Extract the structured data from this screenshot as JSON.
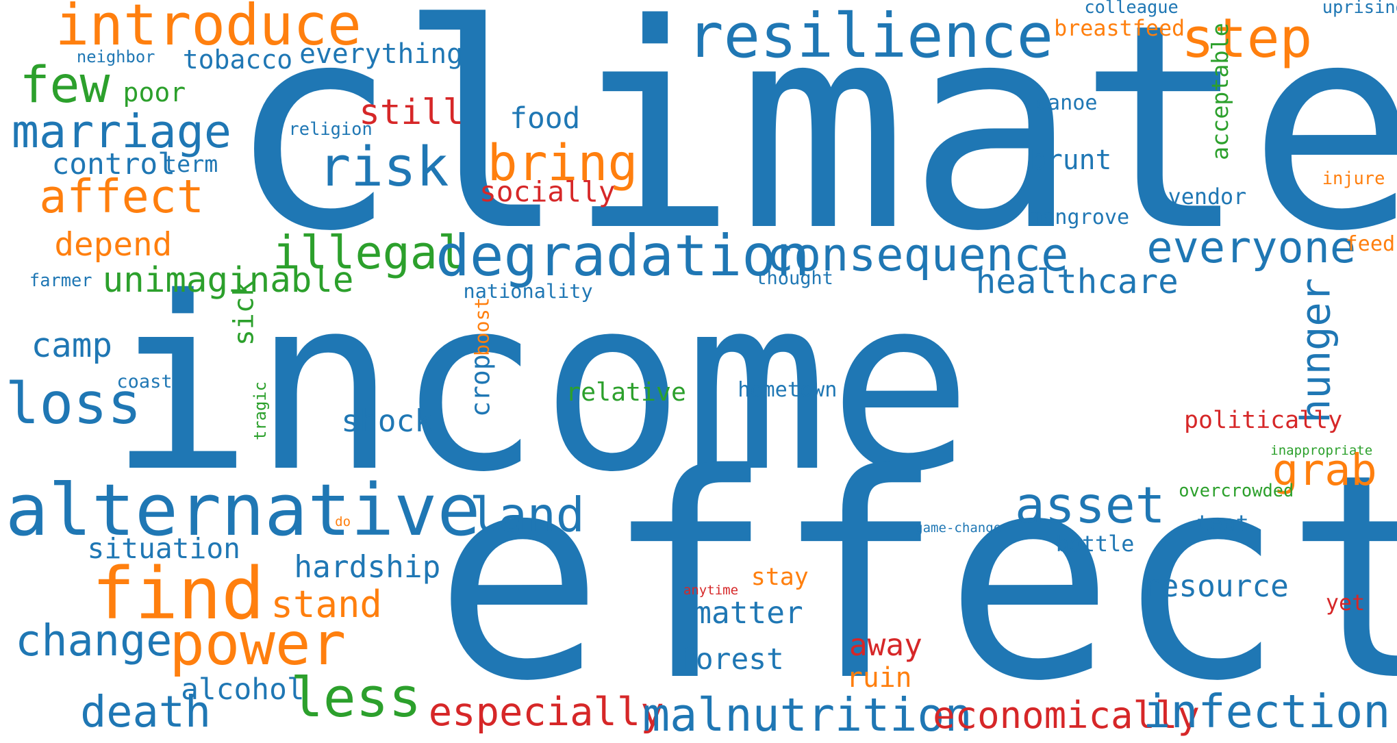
{
  "colors": {
    "blue": "#1f77b4",
    "orange": "#ff7f0e",
    "green": "#2ca02c",
    "red": "#d62728",
    "background": "#ffffff"
  },
  "words": [
    {
      "text": "climate",
      "color": "blue"
    },
    {
      "text": "income",
      "color": "blue"
    },
    {
      "text": "effect",
      "color": "blue"
    },
    {
      "text": "introduce",
      "color": "orange"
    },
    {
      "text": "resilience",
      "color": "blue"
    },
    {
      "text": "step",
      "color": "orange"
    },
    {
      "text": "colleague",
      "color": "blue"
    },
    {
      "text": "uprising",
      "color": "blue"
    },
    {
      "text": "breastfeed",
      "color": "orange"
    },
    {
      "text": "neighbor",
      "color": "blue"
    },
    {
      "text": "tobacco",
      "color": "blue"
    },
    {
      "text": "everything",
      "color": "blue"
    },
    {
      "text": "few",
      "color": "green"
    },
    {
      "text": "poor",
      "color": "green"
    },
    {
      "text": "marriage",
      "color": "blue"
    },
    {
      "text": "still",
      "color": "red"
    },
    {
      "text": "religion",
      "color": "blue"
    },
    {
      "text": "food",
      "color": "blue"
    },
    {
      "text": "canoe",
      "color": "blue"
    },
    {
      "text": "acceptable",
      "color": "green"
    },
    {
      "text": "risk",
      "color": "blue"
    },
    {
      "text": "bring",
      "color": "orange"
    },
    {
      "text": "control",
      "color": "blue"
    },
    {
      "text": "term",
      "color": "blue"
    },
    {
      "text": "brunt",
      "color": "blue"
    },
    {
      "text": "injure",
      "color": "orange"
    },
    {
      "text": "affect",
      "color": "orange"
    },
    {
      "text": "socially",
      "color": "red"
    },
    {
      "text": "vendor",
      "color": "blue"
    },
    {
      "text": "mangrove",
      "color": "blue"
    },
    {
      "text": "depend",
      "color": "orange"
    },
    {
      "text": "illegal",
      "color": "green"
    },
    {
      "text": "degradation",
      "color": "blue"
    },
    {
      "text": "consequence",
      "color": "blue"
    },
    {
      "text": "everyone",
      "color": "blue"
    },
    {
      "text": "feed",
      "color": "orange"
    },
    {
      "text": "farmer",
      "color": "blue"
    },
    {
      "text": "unimaginable",
      "color": "green"
    },
    {
      "text": "nationality",
      "color": "blue"
    },
    {
      "text": "thought",
      "color": "blue"
    },
    {
      "text": "healthcare",
      "color": "blue"
    },
    {
      "text": "sick",
      "color": "green"
    },
    {
      "text": "hunger",
      "color": "blue"
    },
    {
      "text": "camp",
      "color": "blue"
    },
    {
      "text": "boost",
      "color": "orange"
    },
    {
      "text": "coast",
      "color": "blue"
    },
    {
      "text": "crop",
      "color": "blue"
    },
    {
      "text": "loss",
      "color": "blue"
    },
    {
      "text": "relative",
      "color": "green"
    },
    {
      "text": "hometown",
      "color": "blue"
    },
    {
      "text": "tragic",
      "color": "green"
    },
    {
      "text": "shock",
      "color": "blue"
    },
    {
      "text": "politically",
      "color": "red"
    },
    {
      "text": "inappropriate",
      "color": "green"
    },
    {
      "text": "grab",
      "color": "orange"
    },
    {
      "text": "overcrowded",
      "color": "green"
    },
    {
      "text": "alternative",
      "color": "blue"
    },
    {
      "text": "land",
      "color": "blue"
    },
    {
      "text": "asset",
      "color": "blue"
    },
    {
      "text": "do",
      "color": "orange"
    },
    {
      "text": "game-change",
      "color": "blue"
    },
    {
      "text": "teat",
      "color": "blue"
    },
    {
      "text": "situation",
      "color": "blue"
    },
    {
      "text": "bottle",
      "color": "blue"
    },
    {
      "text": "find",
      "color": "orange"
    },
    {
      "text": "hardship",
      "color": "blue"
    },
    {
      "text": "stay",
      "color": "orange"
    },
    {
      "text": "resource",
      "color": "blue"
    },
    {
      "text": "stand",
      "color": "orange"
    },
    {
      "text": "anytime",
      "color": "red"
    },
    {
      "text": "yet",
      "color": "red"
    },
    {
      "text": "power",
      "color": "orange"
    },
    {
      "text": "matter",
      "color": "blue"
    },
    {
      "text": "change",
      "color": "blue"
    },
    {
      "text": "away",
      "color": "red"
    },
    {
      "text": "forest",
      "color": "blue"
    },
    {
      "text": "ruin",
      "color": "orange"
    },
    {
      "text": "alcohol",
      "color": "blue"
    },
    {
      "text": "less",
      "color": "green"
    },
    {
      "text": "death",
      "color": "blue"
    },
    {
      "text": "especially",
      "color": "red"
    },
    {
      "text": "malnutrition",
      "color": "blue"
    },
    {
      "text": "economically",
      "color": "red"
    },
    {
      "text": "infection",
      "color": "blue"
    }
  ]
}
